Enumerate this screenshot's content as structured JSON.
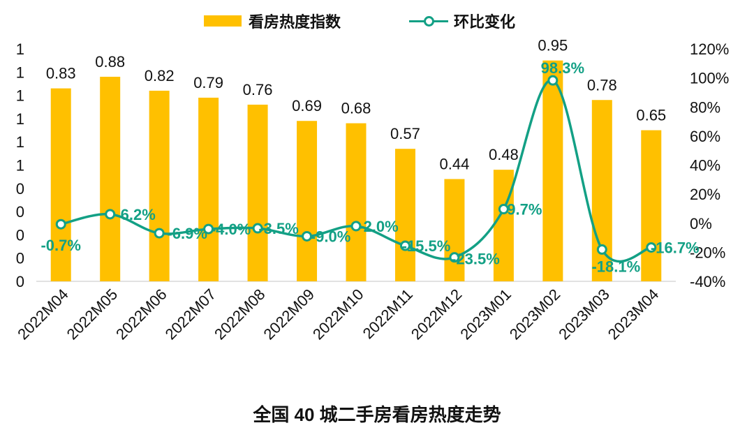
{
  "legend": {
    "bar_label": "看房热度指数",
    "line_label": "环比变化"
  },
  "caption": "全国 40 城二手房看房热度走势",
  "colors": {
    "bar": "#FFC000",
    "line": "#13A085",
    "axis": "#D9D9D9",
    "text": "#111111"
  },
  "chart_data": {
    "type": "bar",
    "title": "",
    "categories": [
      "2022M04",
      "2022M05",
      "2022M06",
      "2022M07",
      "2022M08",
      "2022M09",
      "2022M10",
      "2022M11",
      "2022M12",
      "2023M01",
      "2023M02",
      "2023M03",
      "2023M04"
    ],
    "series": [
      {
        "name": "看房热度指数",
        "type": "bar",
        "axis": "left",
        "values": [
          0.83,
          0.88,
          0.82,
          0.79,
          0.76,
          0.69,
          0.68,
          0.57,
          0.44,
          0.48,
          0.95,
          0.78,
          0.65
        ],
        "labels": [
          "0.83",
          "0.88",
          "0.82",
          "0.79",
          "0.76",
          "0.69",
          "0.68",
          "0.57",
          "0.44",
          "0.48",
          "0.95",
          "0.78",
          "0.65"
        ]
      },
      {
        "name": "环比变化",
        "type": "line",
        "axis": "right",
        "values": [
          -0.7,
          6.2,
          -6.9,
          -4.0,
          -3.5,
          -9.0,
          -2.0,
          -15.5,
          -23.5,
          9.7,
          98.3,
          -18.1,
          -16.7
        ],
        "labels": [
          "-0.7%",
          "6.2%",
          "-6.9%",
          "-4.0%",
          "-3.5%",
          "-9.0%",
          "-2.0%",
          "-15.5%",
          "-23.5%",
          "9.7%",
          "98.3%",
          "-18.1%",
          "-16.7%"
        ]
      }
    ],
    "y_left": {
      "ylim": [
        0,
        1
      ],
      "tick_labels": [
        "0",
        "0",
        "0",
        "0",
        "0",
        "1",
        "1",
        "1",
        "1",
        "1",
        "1"
      ]
    },
    "y_right": {
      "ylim": [
        -40,
        120
      ],
      "ticks": [
        -40,
        -20,
        0,
        20,
        40,
        60,
        80,
        100,
        120
      ],
      "tick_labels": [
        "-40%",
        "-20%",
        "0%",
        "20%",
        "40%",
        "60%",
        "80%",
        "100%",
        "120%"
      ]
    },
    "legend_position": "top-center",
    "grid": false
  }
}
